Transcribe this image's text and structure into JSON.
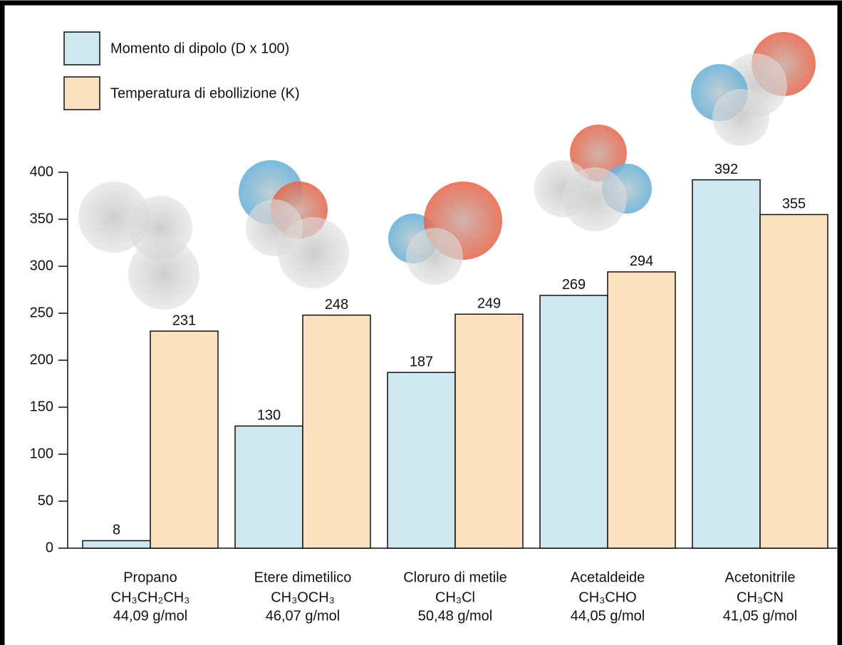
{
  "chart_data": {
    "type": "bar",
    "categories": [
      "Propano",
      "Etere dimetilico",
      "Cloruro di metile",
      "Acetaldeide",
      "Acetonitrile"
    ],
    "formulas": [
      "CH₃CH₂CH₃",
      "CH₃OCH₃",
      "CH₃Cl",
      "CH₃CHO",
      "CH₃CN"
    ],
    "molar_masses": [
      "44,09 g/mol",
      "46,07 g/mol",
      "50,48 g/mol",
      "44,05 g/mol",
      "41,05 g/mol"
    ],
    "series": [
      {
        "name": "Momento di dipolo  (D x 100)",
        "color": "#cfe8ef",
        "values": [
          8,
          130,
          187,
          269,
          392
        ]
      },
      {
        "name": "Temperatura di ebollizione  (K)",
        "color": "#fbe1c0",
        "values": [
          231,
          248,
          249,
          294,
          355
        ]
      }
    ],
    "ylim": [
      0,
      400
    ],
    "yticks": [
      0,
      50,
      100,
      150,
      200,
      250,
      300,
      350,
      400
    ]
  }
}
